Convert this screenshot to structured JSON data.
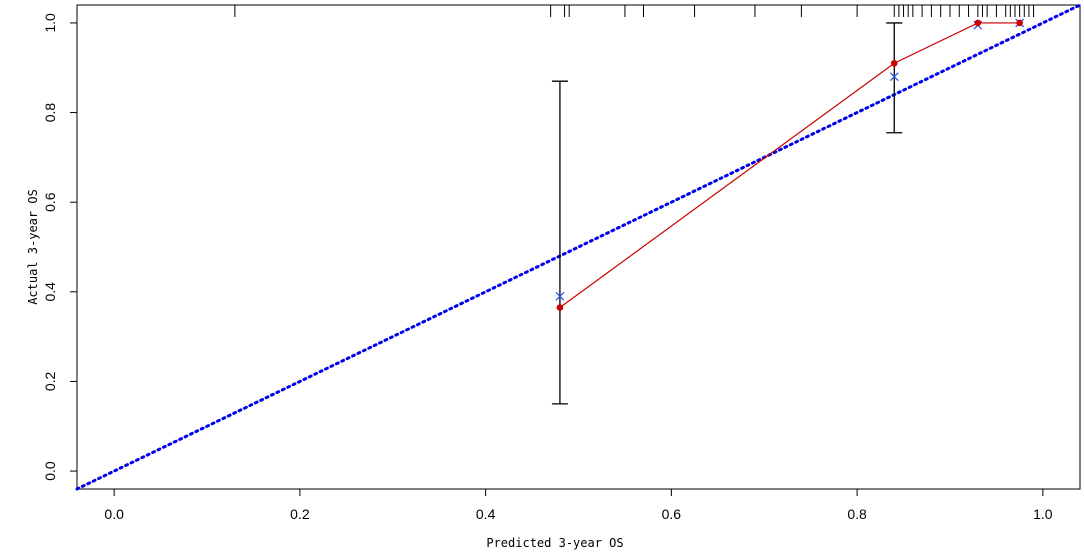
{
  "chart_data": {
    "type": "scatter",
    "xlabel": "Predicted 3-year OS",
    "ylabel": "Actual 3-year OS",
    "xlim": [
      -0.04,
      1.04
    ],
    "ylim": [
      -0.04,
      1.04
    ],
    "xticks": [
      "0.0",
      "0.2",
      "0.4",
      "0.6",
      "0.8",
      "1.0"
    ],
    "yticks": [
      "0.0",
      "0.2",
      "0.4",
      "0.6",
      "0.8",
      "1.0"
    ],
    "grid": false,
    "legend": "none",
    "colors": {
      "observed": "#cc0000",
      "ideal": "#0000ee",
      "corrected": "#3355ee",
      "errorbar": "#000000"
    },
    "series": [
      {
        "x": [
          -0.04,
          1.04
        ],
        "y": [
          -0.04,
          1.04
        ]
      },
      {
        "x": [
          0.48,
          0.84,
          0.93,
          0.975
        ],
        "y": [
          0.365,
          0.91,
          1.0,
          1.0
        ]
      },
      {
        "x": [
          0.48,
          0.84,
          0.93,
          0.975
        ],
        "y": [
          0.39,
          0.88,
          0.995,
          1.0
        ]
      }
    ],
    "error_bars": [
      {
        "x": [
          0.48,
          0.84
        ],
        "lower": [
          0.15,
          0.755
        ],
        "upper": [
          0.87,
          1.0
        ]
      }
    ],
    "rug_x": [
      0.13,
      0.47,
      0.485,
      0.49,
      0.55,
      0.57,
      0.625,
      0.69,
      0.74,
      0.8,
      0.84,
      0.845,
      0.85,
      0.855,
      0.86,
      0.87,
      0.88,
      0.89,
      0.9,
      0.91,
      0.92,
      0.93,
      0.935,
      0.94,
      0.95,
      0.96,
      0.965,
      0.97,
      0.975,
      0.98,
      0.985,
      0.99
    ]
  }
}
